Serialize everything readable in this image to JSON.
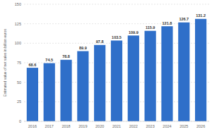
{
  "chart_data": {
    "type": "bar",
    "y_label": "Estimated value of net sales in billion euros",
    "categories": [
      "2016",
      "2017",
      "2018",
      "2019",
      "2020",
      "2021",
      "2022",
      "2023",
      "2024",
      "2025",
      "2026"
    ],
    "values": [
      68.6,
      74.5,
      78.8,
      89.9,
      97.8,
      103.5,
      109.9,
      115.9,
      121.8,
      126.7,
      131.2
    ],
    "color": "#2f6fc9",
    "ylim": [
      0,
      150
    ],
    "yticks": [
      0,
      25,
      50,
      75,
      100,
      125,
      150
    ],
    "grid": true,
    "data_labels": true
  }
}
